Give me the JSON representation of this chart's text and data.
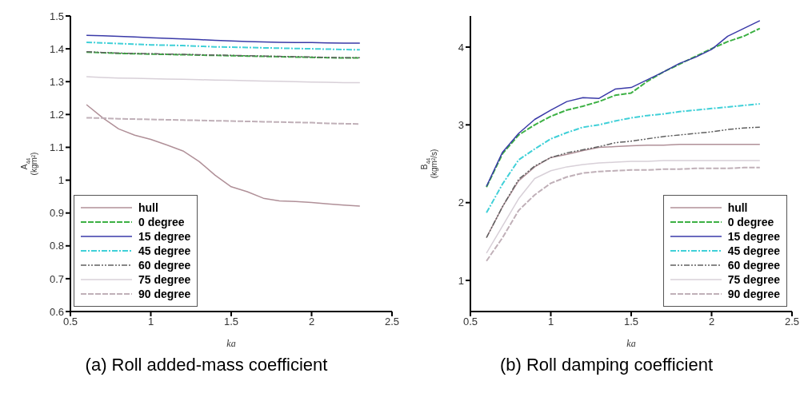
{
  "chart_data": [
    {
      "type": "line",
      "title": "(a) Roll added-mass coefficient",
      "xlabel": "ka",
      "ylabel": "A$_{44}$ (kgm²)",
      "legend": "bottom left",
      "marker": "none",
      "x": [
        0.6,
        0.7,
        0.8,
        0.9,
        1.0,
        1.1,
        1.2,
        1.3,
        1.4,
        1.5,
        1.6,
        1.7,
        1.8,
        1.9,
        2.0,
        2.1,
        2.2,
        2.3
      ],
      "xlim": [
        0.5,
        2.5
      ],
      "xticks": [
        0.5,
        1,
        1.5,
        2,
        2.5
      ],
      "ylim": [
        0.6,
        1.5
      ],
      "yticks": [
        0.6,
        0.7,
        0.8,
        0.9,
        1,
        1.1,
        1.2,
        1.3,
        1.4,
        1.5
      ],
      "series": [
        {
          "name": "hull",
          "color": "#b09098",
          "line_style": "solid",
          "values": [
            1.23,
            1.19,
            1.156,
            1.137,
            1.124,
            1.107,
            1.089,
            1.057,
            1.015,
            0.98,
            0.965,
            0.945,
            0.937,
            0.935,
            0.932,
            0.928,
            0.924,
            0.921
          ]
        },
        {
          "name": "0 degree",
          "color": "#3cb043",
          "line_style": "dashed",
          "values": [
            1.39,
            1.388,
            1.386,
            1.385,
            1.384,
            1.383,
            1.382,
            1.381,
            1.38,
            1.379,
            1.378,
            1.377,
            1.376,
            1.375,
            1.374,
            1.373,
            1.372,
            1.372
          ]
        },
        {
          "name": "15 degree",
          "color": "#3a3aa8",
          "line_style": "solid",
          "values": [
            1.441,
            1.44,
            1.438,
            1.436,
            1.434,
            1.432,
            1.43,
            1.428,
            1.426,
            1.424,
            1.422,
            1.421,
            1.42,
            1.419,
            1.419,
            1.418,
            1.417,
            1.417
          ]
        },
        {
          "name": "45 degree",
          "color": "#40d0d8",
          "line_style": "dashdot",
          "values": [
            1.42,
            1.418,
            1.416,
            1.414,
            1.412,
            1.411,
            1.41,
            1.408,
            1.406,
            1.405,
            1.404,
            1.403,
            1.402,
            1.401,
            1.4,
            1.399,
            1.398,
            1.397
          ]
        },
        {
          "name": "60 degree",
          "color": "#606060",
          "line_style": "dashdotdot",
          "values": [
            1.391,
            1.389,
            1.387,
            1.386,
            1.385,
            1.384,
            1.383,
            1.382,
            1.381,
            1.38,
            1.379,
            1.378,
            1.377,
            1.376,
            1.375,
            1.374,
            1.373,
            1.373
          ]
        },
        {
          "name": "75 degree",
          "color": "#d8d0d8",
          "line_style": "solid",
          "values": [
            1.315,
            1.313,
            1.311,
            1.31,
            1.309,
            1.308,
            1.307,
            1.306,
            1.305,
            1.304,
            1.303,
            1.302,
            1.301,
            1.3,
            1.299,
            1.298,
            1.297,
            1.297
          ]
        },
        {
          "name": "90 degree",
          "color": "#c0b0b8",
          "line_style": "dashed",
          "values": [
            1.19,
            1.189,
            1.187,
            1.186,
            1.185,
            1.184,
            1.183,
            1.182,
            1.181,
            1.18,
            1.179,
            1.178,
            1.177,
            1.176,
            1.175,
            1.173,
            1.172,
            1.171
          ]
        }
      ]
    },
    {
      "type": "line",
      "title": "(b) Roll damping coefficient",
      "xlabel": "ka",
      "ylabel": "B$_{44}$ (kgm²/s)",
      "legend": "bottom right",
      "marker": "none",
      "x": [
        0.6,
        0.7,
        0.8,
        0.9,
        1.0,
        1.1,
        1.2,
        1.3,
        1.4,
        1.5,
        1.6,
        1.7,
        1.8,
        1.9,
        2.0,
        2.1,
        2.2,
        2.3
      ],
      "xlim": [
        0.5,
        2.5
      ],
      "xticks": [
        0.5,
        1,
        1.5,
        2,
        2.5
      ],
      "ylim": [
        0.6,
        4.4
      ],
      "yticks": [
        1,
        2,
        3,
        4
      ],
      "series": [
        {
          "name": "hull",
          "color": "#b09098",
          "line_style": "solid",
          "values": [
            1.55,
            1.95,
            2.28,
            2.46,
            2.58,
            2.62,
            2.67,
            2.71,
            2.72,
            2.73,
            2.74,
            2.74,
            2.75,
            2.75,
            2.75,
            2.75,
            2.75,
            2.75
          ]
        },
        {
          "name": "0 degree",
          "color": "#3cb043",
          "line_style": "dashed",
          "values": [
            2.2,
            2.63,
            2.87,
            3.0,
            3.11,
            3.19,
            3.24,
            3.3,
            3.38,
            3.41,
            3.56,
            3.68,
            3.78,
            3.88,
            3.98,
            4.07,
            4.14,
            4.24
          ]
        },
        {
          "name": "15 degree",
          "color": "#3a3aa8",
          "line_style": "solid",
          "values": [
            2.21,
            2.65,
            2.89,
            3.07,
            3.19,
            3.3,
            3.35,
            3.34,
            3.46,
            3.48,
            3.58,
            3.68,
            3.79,
            3.87,
            3.97,
            4.14,
            4.24,
            4.34
          ]
        },
        {
          "name": "45 degree",
          "color": "#40d0d8",
          "line_style": "dashdot",
          "values": [
            1.87,
            2.24,
            2.55,
            2.69,
            2.82,
            2.9,
            2.97,
            3.0,
            3.05,
            3.09,
            3.12,
            3.14,
            3.17,
            3.19,
            3.21,
            3.23,
            3.25,
            3.27
          ]
        },
        {
          "name": "60 degree",
          "color": "#606060",
          "line_style": "dashdotdot",
          "values": [
            1.55,
            1.95,
            2.3,
            2.47,
            2.58,
            2.64,
            2.68,
            2.72,
            2.77,
            2.79,
            2.82,
            2.85,
            2.87,
            2.89,
            2.91,
            2.94,
            2.96,
            2.97
          ]
        },
        {
          "name": "75 degree",
          "color": "#d8d0d8",
          "line_style": "solid",
          "values": [
            1.35,
            1.7,
            2.05,
            2.31,
            2.41,
            2.46,
            2.49,
            2.51,
            2.52,
            2.53,
            2.53,
            2.54,
            2.54,
            2.54,
            2.54,
            2.54,
            2.54,
            2.54
          ]
        },
        {
          "name": "90 degree",
          "color": "#c0b0b8",
          "line_style": "dashed",
          "values": [
            1.25,
            1.55,
            1.9,
            2.1,
            2.25,
            2.33,
            2.38,
            2.4,
            2.41,
            2.42,
            2.42,
            2.43,
            2.43,
            2.44,
            2.44,
            2.44,
            2.45,
            2.45
          ]
        }
      ]
    }
  ]
}
